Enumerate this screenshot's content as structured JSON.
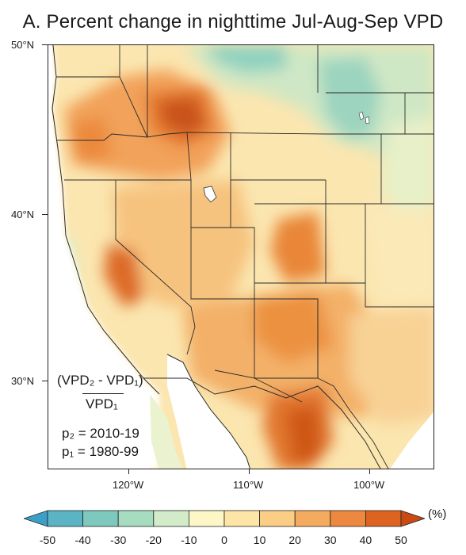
{
  "title": "A. Percent change in nighttime Jul-Aug-Sep VPD",
  "lat_labels": [
    "50°N",
    "40°N",
    "30°N"
  ],
  "lon_labels": [
    "120°W",
    "110°W",
    "100°W"
  ],
  "formula": {
    "numerator": "(VPD₂ - VPD₁)",
    "denominator": "VPD₁",
    "period2": "p₂ = 2010-19",
    "period1": "p₁ = 1980-99"
  },
  "colorbar": {
    "ticks": [
      "-50",
      "-40",
      "-30",
      "-20",
      "-10",
      "0",
      "10",
      "20",
      "30",
      "40",
      "50"
    ],
    "unit": "(%)",
    "colors": [
      "#3b9fc8",
      "#5ab4c4",
      "#7ec9bd",
      "#a6dcc0",
      "#d2ecc9",
      "#fdf7c8",
      "#fde5a6",
      "#fbcd85",
      "#f5ab5f",
      "#ec8840",
      "#dd6321",
      "#c94a12"
    ]
  }
}
